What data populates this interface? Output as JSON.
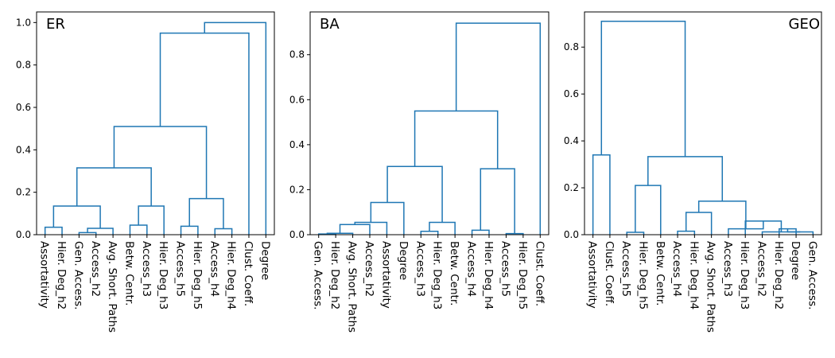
{
  "chart_data": [
    {
      "type": "dendrogram",
      "title": "ER",
      "title_position": "top-left",
      "ylim": [
        0,
        1.05
      ],
      "yticks": [
        "0.0",
        "0.2",
        "0.4",
        "0.6",
        "0.8",
        "1.0"
      ],
      "color": "#1f77b4",
      "leaves": [
        "Assortativity",
        "Hier. Deg_h2",
        "Gen. Access.",
        "Access_h2",
        "Avg. Short. Paths",
        "Betw. Centr.",
        "Access_h3",
        "Hier. Deg_h3",
        "Access_h5",
        "Hier. Deg_h5",
        "Access_h4",
        "Hier. Deg_h4",
        "Clust. Coeff.",
        "Degree"
      ],
      "merges": [
        {
          "a": "L0",
          "b": "L1",
          "h": 0.035
        },
        {
          "a": "L2",
          "b": "L3",
          "h": 0.01
        },
        {
          "a": "M1",
          "b": "L4",
          "h": 0.03
        },
        {
          "a": "M0",
          "b": "M2",
          "h": 0.135
        },
        {
          "a": "L5",
          "b": "L6",
          "h": 0.045
        },
        {
          "a": "M4",
          "b": "L7",
          "h": 0.135
        },
        {
          "a": "M3",
          "b": "M5",
          "h": 0.315
        },
        {
          "a": "L8",
          "b": "L9",
          "h": 0.04
        },
        {
          "a": "L10",
          "b": "L11",
          "h": 0.028
        },
        {
          "a": "M7",
          "b": "M8",
          "h": 0.17
        },
        {
          "a": "M6",
          "b": "M9",
          "h": 0.51
        },
        {
          "a": "M10",
          "b": "L12",
          "h": 0.95
        },
        {
          "a": "M11",
          "b": "L13",
          "h": 1.0
        }
      ]
    },
    {
      "type": "dendrogram",
      "title": "BA",
      "title_position": "top-left",
      "ylim": [
        0,
        0.99
      ],
      "yticks": [
        "0.0",
        "0.2",
        "0.4",
        "0.6",
        "0.8"
      ],
      "color": "#1f77b4",
      "leaves": [
        "Gen. Access.",
        "Hier. Deg_h2",
        "Avg. Short. Paths",
        "Access_h2",
        "Assortativity",
        "Degree",
        "Access_h3",
        "Hier. Deg_h3",
        "Betw. Centr.",
        "Access_h4",
        "Hier. Deg_h4",
        "Access_h5",
        "Hier. Deg_h5",
        "Clust. Coeff."
      ],
      "merges": [
        {
          "a": "L0",
          "b": "L1",
          "h": 0.003
        },
        {
          "a": "M0",
          "b": "L2",
          "h": 0.006
        },
        {
          "a": "M1",
          "b": "L3",
          "h": 0.045
        },
        {
          "a": "M2",
          "b": "L4",
          "h": 0.055
        },
        {
          "a": "M3",
          "b": "L5",
          "h": 0.143
        },
        {
          "a": "L6",
          "b": "L7",
          "h": 0.015
        },
        {
          "a": "M5",
          "b": "L8",
          "h": 0.055
        },
        {
          "a": "M4",
          "b": "M6",
          "h": 0.303
        },
        {
          "a": "L9",
          "b": "L10",
          "h": 0.02
        },
        {
          "a": "L11",
          "b": "L12",
          "h": 0.005
        },
        {
          "a": "M8",
          "b": "M9",
          "h": 0.293
        },
        {
          "a": "M7",
          "b": "M10",
          "h": 0.55
        },
        {
          "a": "M11",
          "b": "L13",
          "h": 0.94
        }
      ]
    },
    {
      "type": "dendrogram",
      "title": "GEO",
      "title_position": "top-right",
      "ylim": [
        0,
        0.95
      ],
      "yticks": [
        "0.0",
        "0.2",
        "0.4",
        "0.6",
        "0.8"
      ],
      "color": "#1f77b4",
      "leaves": [
        "Assortativity",
        "Clust. Coeff.",
        "Access_h5",
        "Hier. Deg_h5",
        "Betw. Centr.",
        "Access_h4",
        "Hier. Deg_h4",
        "Avg. Short. Paths",
        "Access_h3",
        "Hier. Deg_h3",
        "Access_h2",
        "Hier. Deg_h2",
        "Degree",
        "Gen. Access."
      ],
      "merges": [
        {
          "a": "L0",
          "b": "L1",
          "h": 0.34
        },
        {
          "a": "L2",
          "b": "L3",
          "h": 0.01
        },
        {
          "a": "M1",
          "b": "L4",
          "h": 0.21
        },
        {
          "a": "L5",
          "b": "L6",
          "h": 0.015
        },
        {
          "a": "M3",
          "b": "L7",
          "h": 0.095
        },
        {
          "a": "L11",
          "b": "L12",
          "h": 0.025
        },
        {
          "a": "M5",
          "b": "L13",
          "h": 0.012
        },
        {
          "a": "L10",
          "b": "M6",
          "h": 0.012
        },
        {
          "a": "L9",
          "b": "M7",
          "h": 0.058
        },
        {
          "a": "L8",
          "b": "M8",
          "h": 0.025
        },
        {
          "a": "M4",
          "b": "M9",
          "h": 0.143
        },
        {
          "a": "M2",
          "b": "M10",
          "h": 0.333
        },
        {
          "a": "M0",
          "b": "M11",
          "h": 0.91
        }
      ]
    }
  ]
}
